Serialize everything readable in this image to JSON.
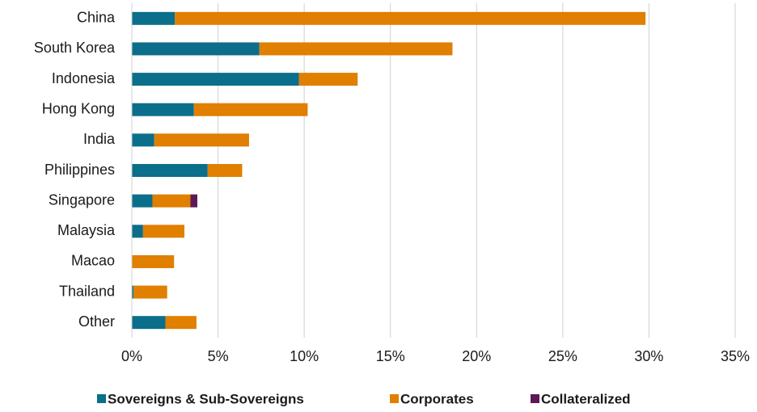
{
  "chart_data": {
    "type": "stacked-bar-horizontal",
    "categories": [
      "China",
      "South Korea",
      "Indonesia",
      "Hong Kong",
      "India",
      "Philippines",
      "Singapore",
      "Malaysia",
      "Macao",
      "Thailand",
      "Other"
    ],
    "series": [
      {
        "name": "Sovereigns & Sub-Sovereigns",
        "color": "#0b6e8a",
        "values": [
          2.5,
          7.4,
          9.7,
          3.6,
          1.3,
          4.4,
          1.2,
          0.65,
          0,
          0.1,
          1.95
        ]
      },
      {
        "name": "Corporates",
        "color": "#e07f00",
        "values": [
          27.3,
          11.2,
          3.4,
          6.6,
          5.5,
          2.0,
          2.2,
          2.4,
          2.45,
          1.95,
          1.8
        ]
      },
      {
        "name": "Collateralized",
        "color": "#5b1a57",
        "values": [
          0,
          0,
          0,
          0,
          0,
          0,
          0.4,
          0,
          0,
          0,
          0
        ]
      }
    ],
    "xlim": [
      0,
      35
    ],
    "xticks": [
      {
        "value": 0,
        "label": "0%"
      },
      {
        "value": 5,
        "label": "5%"
      },
      {
        "value": 10,
        "label": "10%"
      },
      {
        "value": 15,
        "label": "15%"
      },
      {
        "value": 20,
        "label": "20%"
      },
      {
        "value": 25,
        "label": "25%"
      },
      {
        "value": 30,
        "label": "30%"
      },
      {
        "value": 35,
        "label": "35%"
      }
    ],
    "grid": true,
    "legend": "bottom"
  }
}
